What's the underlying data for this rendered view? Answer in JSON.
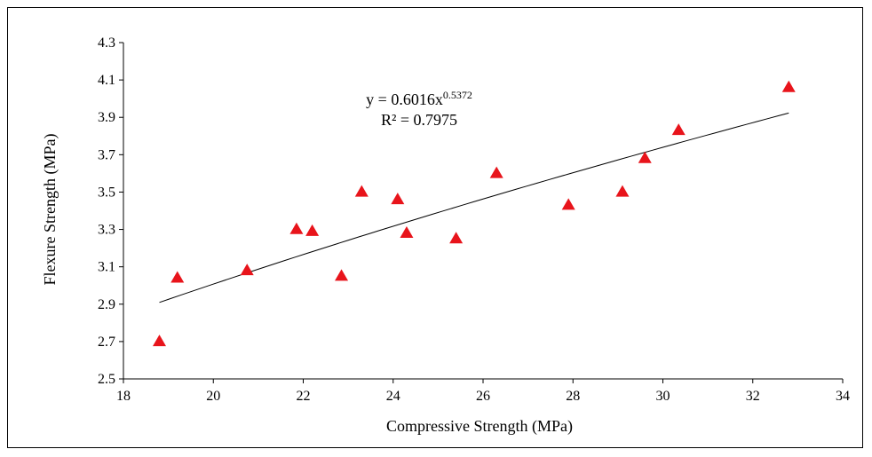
{
  "chart_data": {
    "type": "scatter",
    "title": "",
    "xlabel": "Compressive Strength (MPa)",
    "ylabel": "Flexure Strength (MPa)",
    "xlim": [
      18,
      34
    ],
    "ylim": [
      2.5,
      4.3
    ],
    "x_ticks": [
      18,
      20,
      22,
      24,
      26,
      28,
      30,
      32,
      34
    ],
    "y_ticks": [
      2.5,
      2.7,
      2.9,
      3.1,
      3.3,
      3.5,
      3.7,
      3.9,
      4.1,
      4.3
    ],
    "x_tick_labels": [
      "18",
      "20",
      "22",
      "24",
      "26",
      "28",
      "30",
      "32",
      "34"
    ],
    "y_tick_labels": [
      "2.5",
      "2.7",
      "2.9",
      "3.1",
      "3.3",
      "3.5",
      "3.7",
      "3.9",
      "4.1",
      "4.3"
    ],
    "grid": false,
    "marker": "triangle",
    "marker_color": "#e8141b",
    "series": [
      {
        "points": [
          {
            "x": 18.8,
            "y": 2.7
          },
          {
            "x": 19.2,
            "y": 3.04
          },
          {
            "x": 20.75,
            "y": 3.08
          },
          {
            "x": 21.85,
            "y": 3.3
          },
          {
            "x": 22.2,
            "y": 3.29
          },
          {
            "x": 22.85,
            "y": 3.05
          },
          {
            "x": 23.3,
            "y": 3.5
          },
          {
            "x": 24.1,
            "y": 3.46
          },
          {
            "x": 24.3,
            "y": 3.28
          },
          {
            "x": 25.4,
            "y": 3.25
          },
          {
            "x": 26.3,
            "y": 3.6
          },
          {
            "x": 27.9,
            "y": 3.43
          },
          {
            "x": 29.1,
            "y": 3.5
          },
          {
            "x": 29.6,
            "y": 3.68
          },
          {
            "x": 30.35,
            "y": 3.83
          },
          {
            "x": 32.8,
            "y": 4.06
          }
        ]
      }
    ],
    "trendline": {
      "type": "power",
      "a": 0.6016,
      "b": 0.5372,
      "x_range": [
        18.8,
        32.8
      ],
      "color": "#000000"
    },
    "annotation": {
      "equation_prefix": "y = 0.6016x",
      "equation_exponent": "0.5372",
      "r_squared": "R² = 0.7975"
    }
  }
}
